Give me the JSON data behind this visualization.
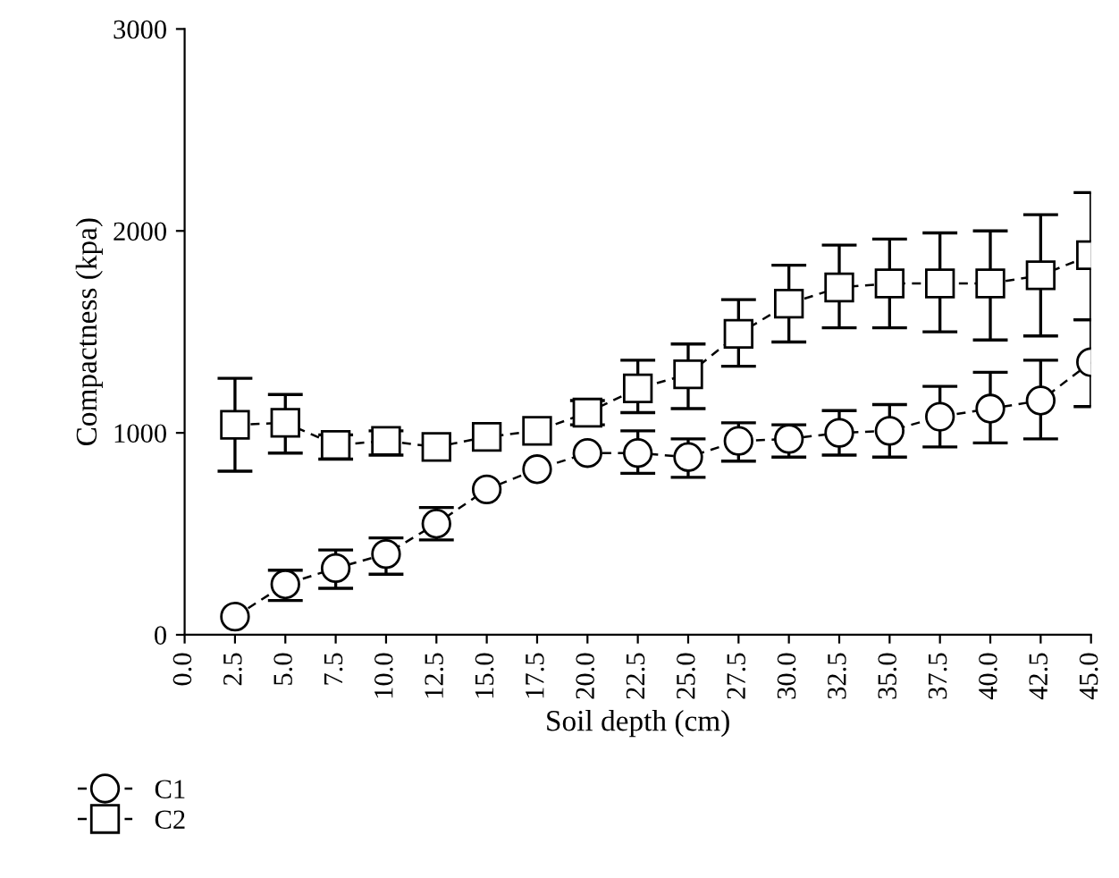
{
  "chart_data": {
    "type": "line",
    "xlabel": "Soil depth (cm)",
    "ylabel": "Compactness (kpa)",
    "x": [
      2.5,
      5,
      7.5,
      10,
      12.5,
      15,
      17.5,
      20,
      22.5,
      25,
      27.5,
      30,
      32.5,
      35,
      37.5,
      40,
      42.5,
      45
    ],
    "series": [
      {
        "name": "C1",
        "color": "#000000",
        "marker": "circle",
        "values": [
          90,
          250,
          330,
          400,
          550,
          720,
          820,
          900,
          900,
          880,
          960,
          970,
          1000,
          1010,
          1080,
          1120,
          1160,
          1350
        ],
        "errors": [
          null,
          [
            170,
            320
          ],
          [
            230,
            420
          ],
          [
            300,
            480
          ],
          [
            470,
            630
          ],
          null,
          null,
          null,
          [
            800,
            1010
          ],
          [
            780,
            970
          ],
          [
            860,
            1050
          ],
          [
            880,
            1040
          ],
          [
            890,
            1110
          ],
          [
            880,
            1140
          ],
          [
            930,
            1230
          ],
          [
            950,
            1300
          ],
          [
            970,
            1360
          ],
          [
            1130,
            1560
          ]
        ]
      },
      {
        "name": "C2",
        "color": "#000000",
        "marker": "square",
        "values": [
          1040,
          1050,
          940,
          960,
          930,
          980,
          1010,
          1100,
          1220,
          1290,
          1490,
          1640,
          1720,
          1740,
          1740,
          1740,
          1780,
          1880
        ],
        "errors": [
          [
            810,
            1270
          ],
          [
            900,
            1190
          ],
          [
            870,
            990
          ],
          [
            890,
            1010
          ],
          null,
          null,
          null,
          [
            1040,
            1160
          ],
          [
            1100,
            1360
          ],
          [
            1120,
            1440
          ],
          [
            1330,
            1660
          ],
          [
            1450,
            1830
          ],
          [
            1520,
            1930
          ],
          [
            1520,
            1960
          ],
          [
            1500,
            1990
          ],
          [
            1460,
            2000
          ],
          [
            1480,
            2080
          ],
          [
            1560,
            2190
          ]
        ]
      }
    ],
    "xlim": [
      0,
      45
    ],
    "xticks": [
      {
        "value": 0,
        "label": "0.0"
      },
      {
        "value": 2.5,
        "label": "2.5"
      },
      {
        "value": 5,
        "label": "5.0"
      },
      {
        "value": 7.5,
        "label": "7.5"
      },
      {
        "value": 10,
        "label": "10.0"
      },
      {
        "value": 12.5,
        "label": "12.5"
      },
      {
        "value": 15,
        "label": "15.0"
      },
      {
        "value": 17.5,
        "label": "17.5"
      },
      {
        "value": 20,
        "label": "20.0"
      },
      {
        "value": 22.5,
        "label": "22.5"
      },
      {
        "value": 25,
        "label": "25.0"
      },
      {
        "value": 27.5,
        "label": "27.5"
      },
      {
        "value": 30,
        "label": "30.0"
      },
      {
        "value": 32.5,
        "label": "32.5"
      },
      {
        "value": 35,
        "label": "35.0"
      },
      {
        "value": 37.5,
        "label": "37.5"
      },
      {
        "value": 40,
        "label": "40.0"
      },
      {
        "value": 42.5,
        "label": "42.5"
      },
      {
        "value": 45,
        "label": "45.0"
      }
    ],
    "ylim": [
      0,
      3000
    ],
    "yticks": [
      0,
      1000,
      2000,
      3000
    ],
    "line_style": "dashed",
    "grid": false,
    "legend": "bottom left"
  }
}
